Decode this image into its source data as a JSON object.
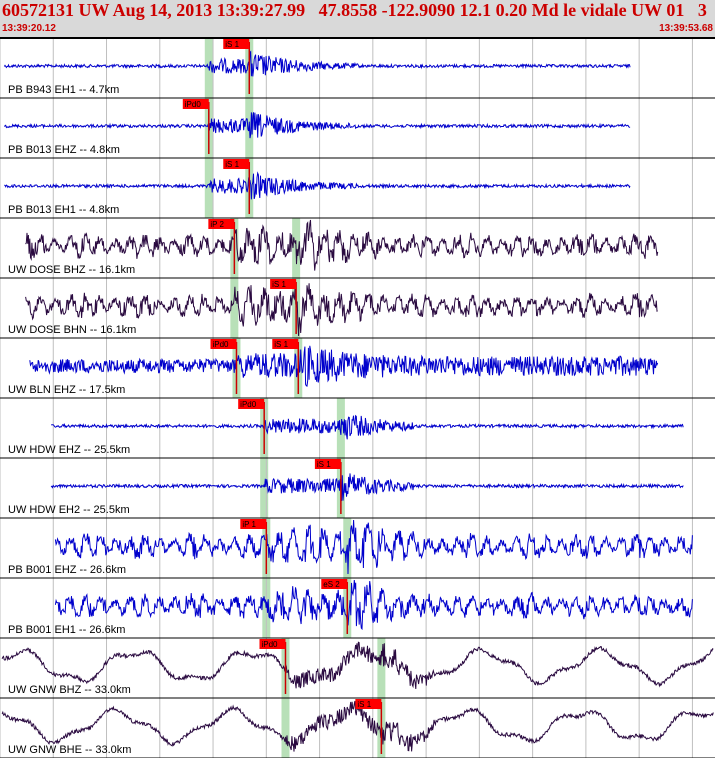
{
  "header": {
    "title": "60572131 UW Aug 14, 2013 13:39:27.99   47.8558 -122.9090 12.1 0.20 Md le vidale UW 01   3",
    "start_time": "13:39:20.12",
    "end_time": "13:39:53.68"
  },
  "colors": {
    "header_text": "#cc0000",
    "header_bg": "#d9d9d9",
    "trace_blue": "#0000cc",
    "trace_dark": "#2a0a40",
    "pick_box": "#ff0000",
    "pick_window": "#b8e0b8",
    "grid": "#000000"
  },
  "chart_data": {
    "type": "line",
    "description_units": "time axis in seconds from 13:39:20.12",
    "x_range": [
      0,
      33.56
    ],
    "grid_ticks_every_s": 2.5,
    "channels": [
      {
        "label": "PB B943 EH1 -- 4.7km",
        "trace_color": "blue",
        "picks": [
          {
            "label": "iS 1",
            "t": 11.7
          }
        ],
        "windows": [
          9.8,
          11.7
        ],
        "signal_range": [
          0.2,
          29.6
        ],
        "style": "hf"
      },
      {
        "label": "PB B013 EHZ -- 4.8km",
        "trace_color": "blue",
        "picks": [
          {
            "label": "iPd0",
            "t": 9.8
          }
        ],
        "windows": [
          9.8,
          11.7
        ],
        "signal_range": [
          0.2,
          29.6
        ],
        "style": "hf"
      },
      {
        "label": "PB B013 EH1 -- 4.8km",
        "trace_color": "blue",
        "picks": [
          {
            "label": "iS 1",
            "t": 11.7
          }
        ],
        "windows": [
          9.8,
          11.7
        ],
        "signal_range": [
          0.2,
          29.6
        ],
        "style": "hf"
      },
      {
        "label": "UW DOSE BHZ -- 16.1km",
        "trace_color": "dark",
        "picks": [
          {
            "label": "iP 2",
            "t": 11.0
          }
        ],
        "windows": [
          11.0,
          13.9
        ],
        "signal_range": [
          1.2,
          30.9
        ],
        "style": "lf"
      },
      {
        "label": "UW DOSE BHN -- 16.1km",
        "trace_color": "dark",
        "picks": [
          {
            "label": "iS 1",
            "t": 13.9
          }
        ],
        "windows": [
          11.0,
          13.9
        ],
        "signal_range": [
          1.2,
          30.9
        ],
        "style": "lf"
      },
      {
        "label": "UW BLN EHZ -- 17.5km",
        "trace_color": "blue",
        "picks": [
          {
            "label": "iPd0",
            "t": 11.1
          },
          {
            "label": "iS 1",
            "t": 14.0
          }
        ],
        "windows": [
          11.1,
          14.0
        ],
        "signal_range": [
          1.4,
          30.9
        ],
        "style": "noisy"
      },
      {
        "label": "UW HDW EHZ -- 25.5km",
        "trace_color": "blue",
        "picks": [
          {
            "label": "iPd0",
            "t": 12.4
          }
        ],
        "windows": [
          12.4,
          16.0
        ],
        "signal_range": [
          2.4,
          32.1
        ],
        "style": "hf"
      },
      {
        "label": "UW HDW EH2 -- 25.5km",
        "trace_color": "blue",
        "picks": [
          {
            "label": "iS 1",
            "t": 16.0
          }
        ],
        "windows": [
          12.4,
          16.0
        ],
        "signal_range": [
          2.4,
          32.1
        ],
        "style": "hf"
      },
      {
        "label": "PB B001 EHZ -- 26.6km",
        "trace_color": "blue",
        "picks": [
          {
            "label": "iP 1",
            "t": 12.5
          }
        ],
        "windows": [
          12.5,
          16.3
        ],
        "signal_range": [
          2.6,
          32.5
        ],
        "style": "lf"
      },
      {
        "label": "PB B001 EH1 -- 26.6km",
        "trace_color": "blue",
        "picks": [
          {
            "label": "eS 2",
            "t": 16.3
          }
        ],
        "windows": [
          12.5,
          16.3
        ],
        "signal_range": [
          2.6,
          32.5
        ],
        "style": "lf"
      },
      {
        "label": "UW GNW BHZ -- 33.0km",
        "trace_color": "dark",
        "picks": [
          {
            "label": "iPd0",
            "t": 13.4
          }
        ],
        "windows": [
          13.4,
          17.9
        ],
        "signal_range": [
          0.1,
          33.5
        ],
        "style": "lp"
      },
      {
        "label": "UW GNW BHE -- 33.0km",
        "trace_color": "dark",
        "picks": [
          {
            "label": "iS 1",
            "t": 17.9
          }
        ],
        "windows": [
          13.4,
          17.9
        ],
        "signal_range": [
          0.1,
          33.5
        ],
        "style": "lp"
      }
    ]
  }
}
